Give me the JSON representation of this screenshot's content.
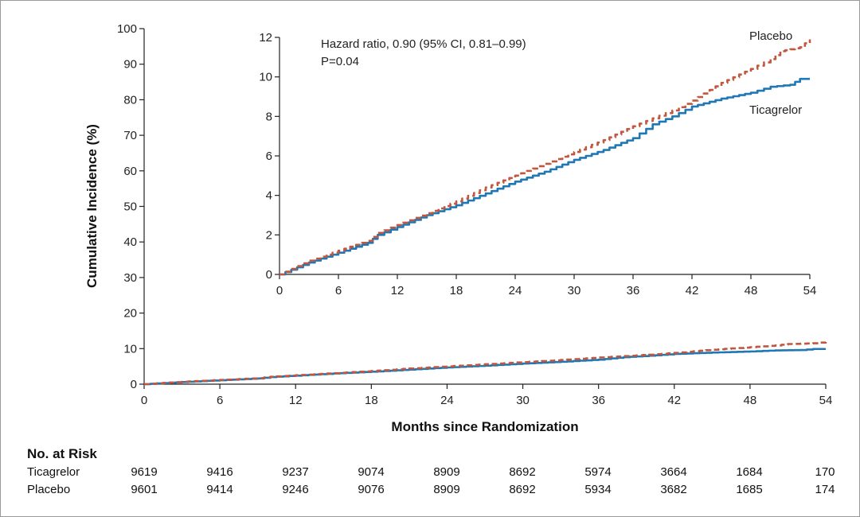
{
  "chart_data": [
    {
      "type": "line",
      "id": "main",
      "ylabel": "Cumulative Incidence (%)",
      "xlabel": "Months since Randomization",
      "xlim": [
        0,
        54
      ],
      "ylim": [
        0,
        100
      ],
      "xticks": [
        0,
        6,
        12,
        18,
        24,
        30,
        36,
        42,
        48,
        54
      ],
      "yticks": [
        0,
        10,
        20,
        30,
        40,
        50,
        60,
        70,
        80,
        90,
        100
      ],
      "series": [
        {
          "name": "Ticagrelor",
          "color": "#1f78b4",
          "dash": "solid",
          "x": [
            0,
            3,
            6,
            9,
            10,
            12,
            15,
            18,
            21,
            24,
            27,
            30,
            33,
            36,
            38,
            40,
            42,
            45,
            48,
            50,
            52,
            53,
            54
          ],
          "y": [
            0,
            0.6,
            1.1,
            1.6,
            2.0,
            2.4,
            3.0,
            3.5,
            4.1,
            4.7,
            5.2,
            5.8,
            6.3,
            6.9,
            7.6,
            8.0,
            8.5,
            8.9,
            9.2,
            9.5,
            9.6,
            9.9,
            9.9
          ]
        },
        {
          "name": "Placebo",
          "color": "#c0573e",
          "dash": "dashed",
          "x": [
            0,
            3,
            6,
            9,
            10,
            12,
            15,
            18,
            21,
            24,
            27,
            30,
            33,
            36,
            38,
            40,
            42,
            45,
            48,
            50,
            51,
            52,
            53,
            54
          ],
          "y": [
            0,
            0.7,
            1.2,
            1.7,
            2.1,
            2.5,
            3.1,
            3.7,
            4.4,
            5.0,
            5.6,
            6.2,
            6.8,
            7.5,
            7.9,
            8.3,
            8.8,
            9.7,
            10.4,
            10.9,
            11.3,
            11.4,
            11.5,
            11.9
          ]
        }
      ]
    },
    {
      "type": "line",
      "id": "inset",
      "xlim": [
        0,
        54
      ],
      "ylim": [
        0,
        12
      ],
      "xticks": [
        0,
        6,
        12,
        18,
        24,
        30,
        36,
        42,
        48,
        54
      ],
      "yticks": [
        0,
        2,
        4,
        6,
        8,
        10,
        12
      ],
      "annotations": {
        "hazard_line1": "Hazard ratio, 0.90 (95% CI, 0.81–0.99)",
        "hazard_line2": "P=0.04",
        "placebo_label": "Placebo",
        "ticagrelor_label": "Ticagrelor"
      },
      "series_ref": "main"
    }
  ],
  "risk_table": {
    "title": "No. at Risk",
    "months": [
      0,
      6,
      12,
      18,
      24,
      30,
      36,
      42,
      48,
      54
    ],
    "rows": [
      {
        "label": "Ticagrelor",
        "values": [
          "9619",
          "9416",
          "9237",
          "9074",
          "8909",
          "8692",
          "5974",
          "3664",
          "1684",
          "170"
        ]
      },
      {
        "label": "Placebo",
        "values": [
          "9601",
          "9414",
          "9246",
          "9076",
          "8909",
          "8692",
          "5934",
          "3682",
          "1685",
          "174"
        ]
      }
    ]
  }
}
